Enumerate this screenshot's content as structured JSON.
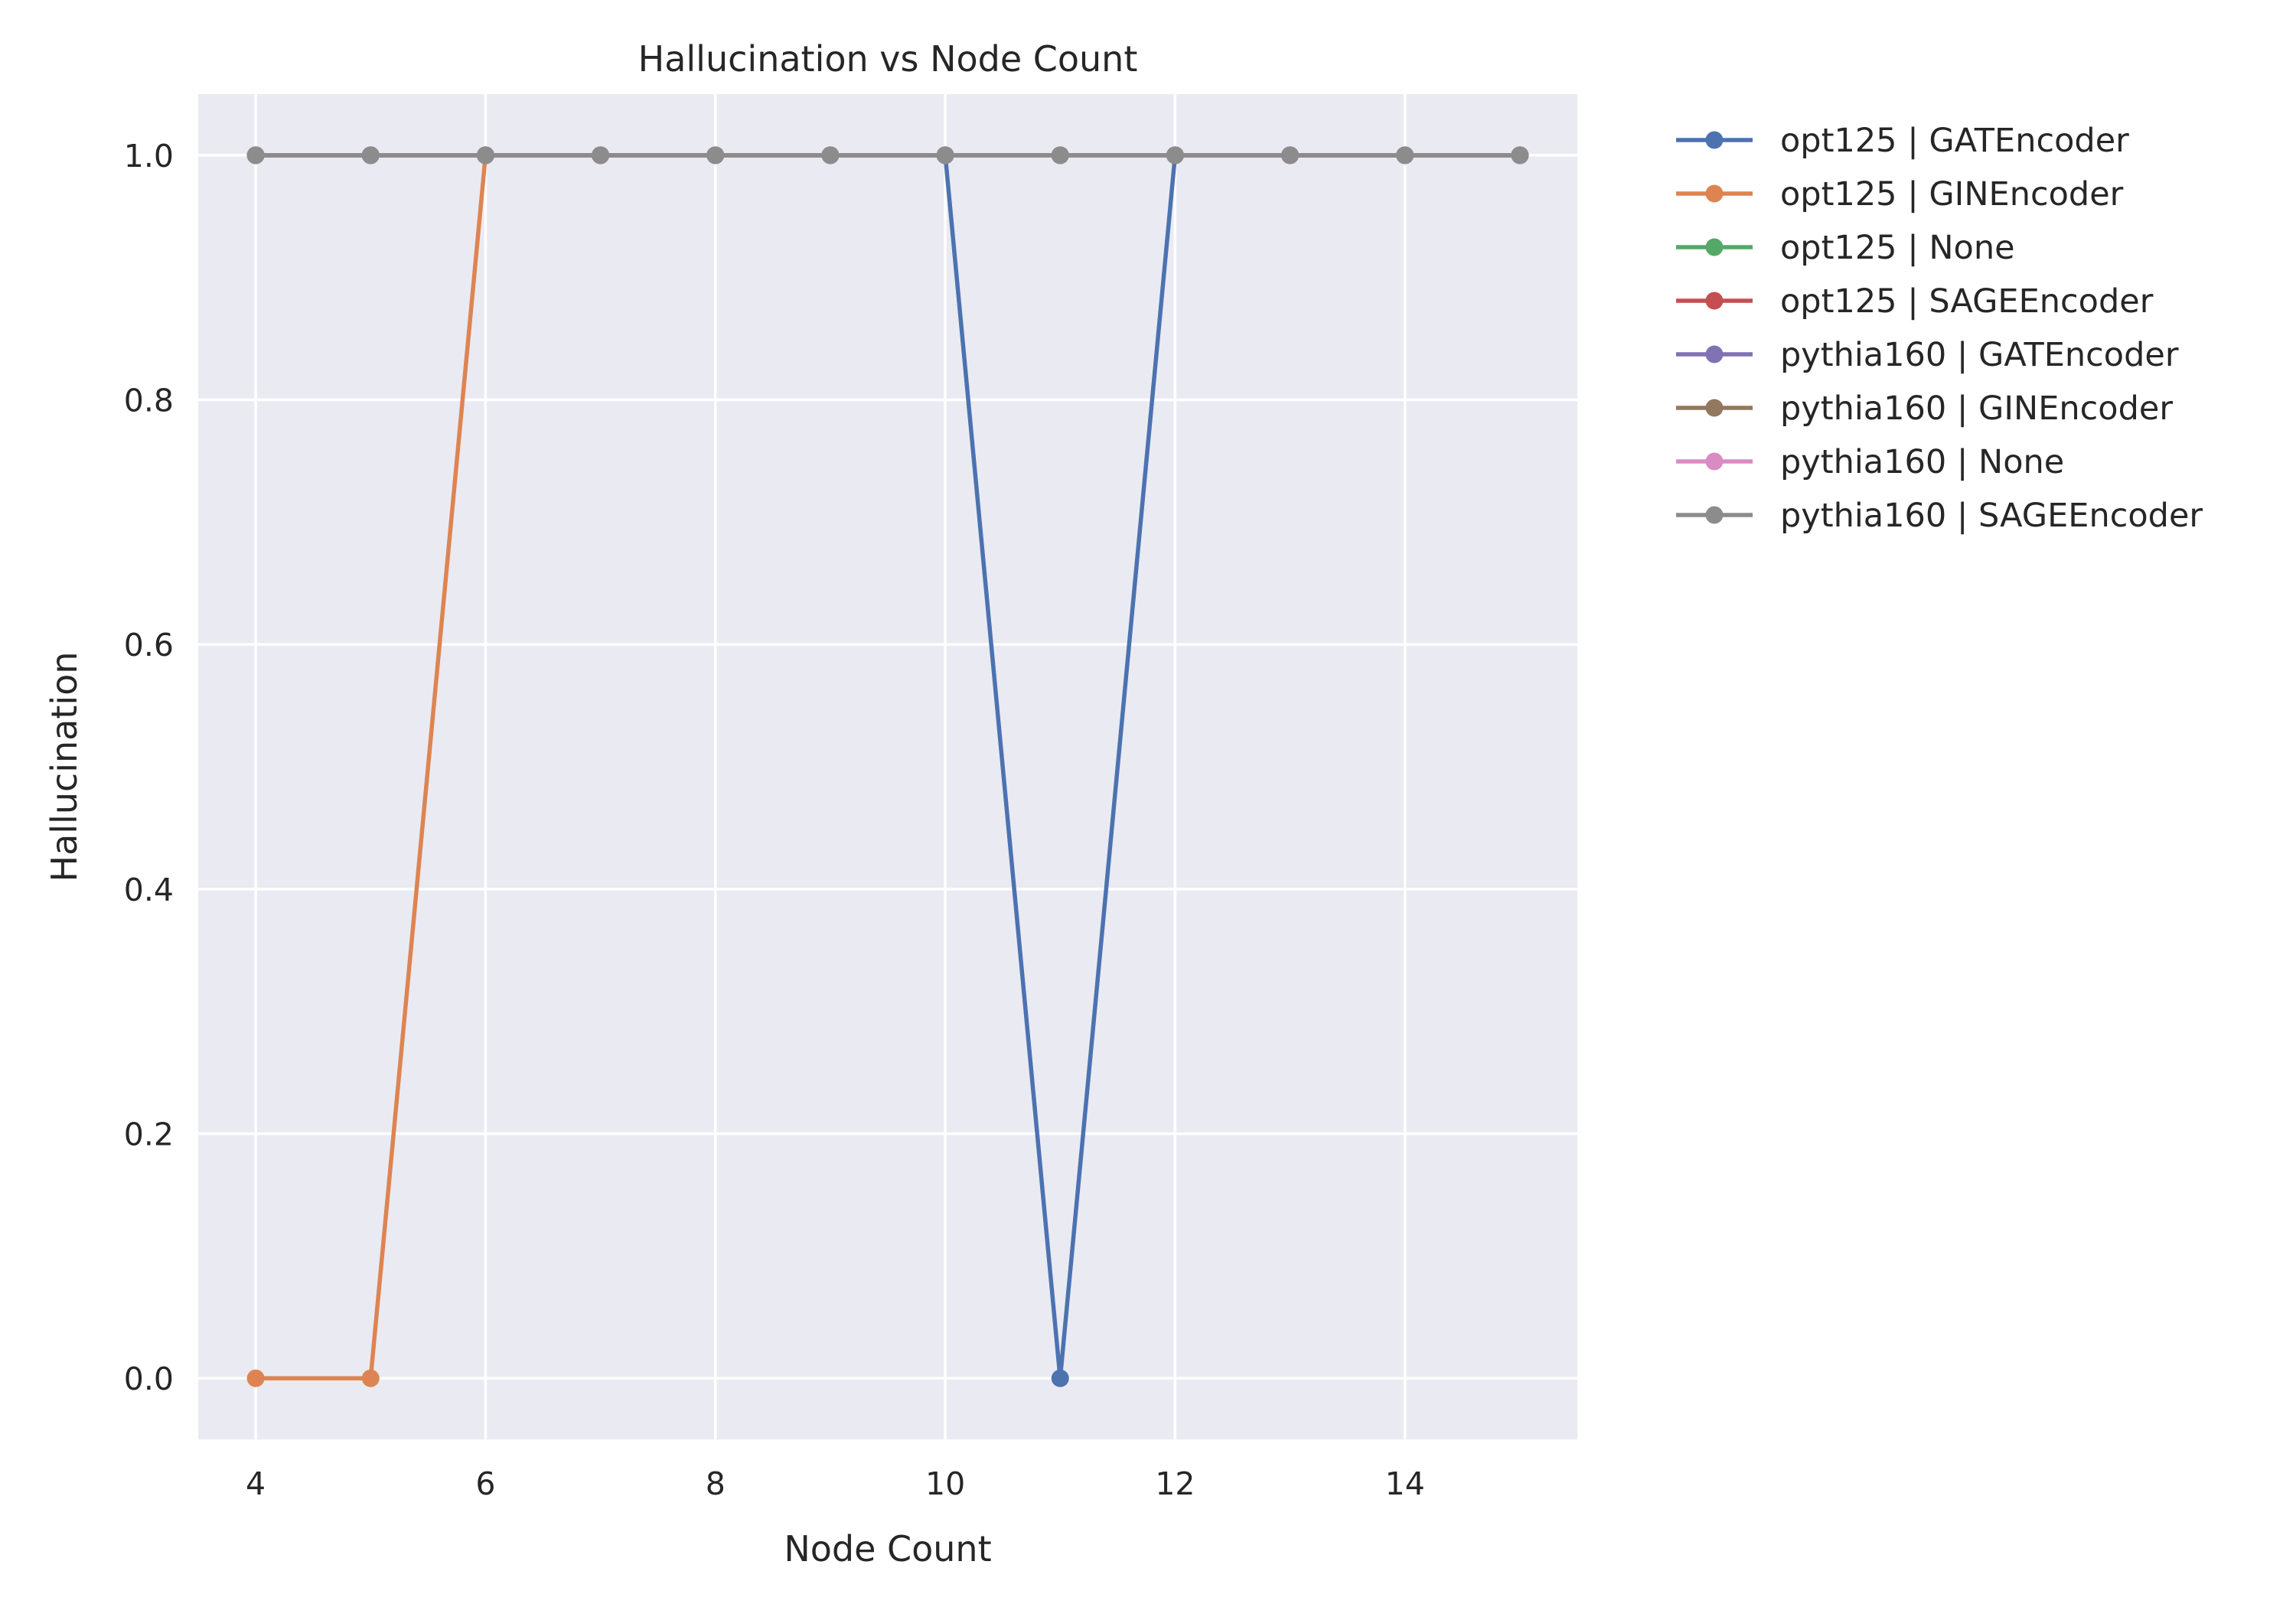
{
  "chart_data": {
    "type": "line",
    "title": "Hallucination vs Node Count",
    "xlabel": "Node Count",
    "ylabel": "Hallucination",
    "xlim": [
      3.5,
      15.5
    ],
    "ylim": [
      -0.05,
      1.05
    ],
    "xticks": [
      4,
      6,
      8,
      10,
      12,
      14
    ],
    "yticks": [
      0.0,
      0.2,
      0.4,
      0.6,
      0.8,
      1.0
    ],
    "xtick_labels": [
      "4",
      "6",
      "8",
      "10",
      "12",
      "14"
    ],
    "ytick_labels": [
      "0.0",
      "0.2",
      "0.4",
      "0.6",
      "0.8",
      "1.0"
    ],
    "grid": true,
    "legend_position": "outside-right-top",
    "x": [
      4,
      5,
      6,
      7,
      8,
      9,
      10,
      11,
      12,
      13,
      14,
      15
    ],
    "series": [
      {
        "name": "opt125 | GATEncoder",
        "color": "#4c72b0",
        "values": [
          1,
          1,
          1,
          1,
          1,
          1,
          1,
          0,
          1,
          1,
          1,
          1
        ]
      },
      {
        "name": "opt125 | GINEncoder",
        "color": "#dd8452",
        "values": [
          0,
          0,
          1,
          1,
          1,
          1,
          1,
          1,
          1,
          1,
          1,
          1
        ]
      },
      {
        "name": "opt125 | None",
        "color": "#55a868",
        "values": [
          1,
          1,
          1,
          1,
          1,
          1,
          1,
          1,
          1,
          1,
          1,
          1
        ]
      },
      {
        "name": "opt125 | SAGEEncoder",
        "color": "#c44e52",
        "values": [
          1,
          1,
          1,
          1,
          1,
          1,
          1,
          1,
          1,
          1,
          1,
          1
        ]
      },
      {
        "name": "pythia160 | GATEncoder",
        "color": "#8172b3",
        "values": [
          1,
          1,
          1,
          1,
          1,
          1,
          1,
          1,
          1,
          1,
          1,
          1
        ]
      },
      {
        "name": "pythia160 | GINEncoder",
        "color": "#937860",
        "values": [
          1,
          1,
          1,
          1,
          1,
          1,
          1,
          1,
          1,
          1,
          1,
          1
        ]
      },
      {
        "name": "pythia160 | None",
        "color": "#da8bc3",
        "values": [
          1,
          1,
          1,
          1,
          1,
          1,
          1,
          1,
          1,
          1,
          1,
          1
        ]
      },
      {
        "name": "pythia160 | SAGEEncoder",
        "color": "#8c8c8c",
        "values": [
          1,
          1,
          1,
          1,
          1,
          1,
          1,
          1,
          1,
          1,
          1,
          1
        ]
      }
    ],
    "plot_background": "#eaeaf2",
    "grid_color": "#ffffff"
  }
}
